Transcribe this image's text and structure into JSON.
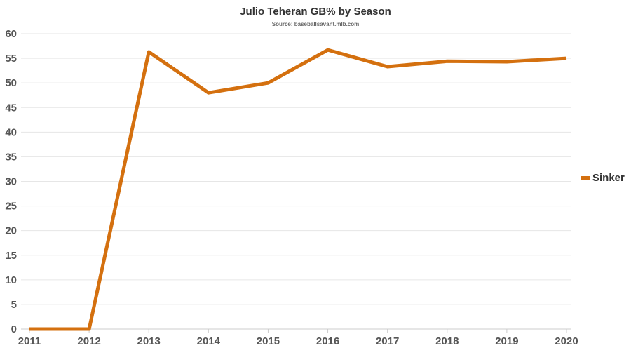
{
  "chart_data": {
    "type": "line",
    "title": "Julio Teheran GB% by Season",
    "subtitle": "Source: baseballsavant.mlb.com",
    "xlabel": "",
    "ylabel": "",
    "x": [
      2011,
      2012,
      2013,
      2014,
      2015,
      2016,
      2017,
      2018,
      2019,
      2020
    ],
    "ylim": [
      0,
      60
    ],
    "yticks": [
      0,
      5,
      10,
      15,
      20,
      25,
      30,
      35,
      40,
      45,
      50,
      55,
      60
    ],
    "grid": true,
    "legend_position": "right",
    "series": [
      {
        "name": "Sinker",
        "color": "#d4700f",
        "values": [
          0,
          0,
          56.3,
          48.0,
          50.0,
          56.7,
          53.3,
          54.4,
          54.3,
          55.0
        ]
      }
    ]
  }
}
